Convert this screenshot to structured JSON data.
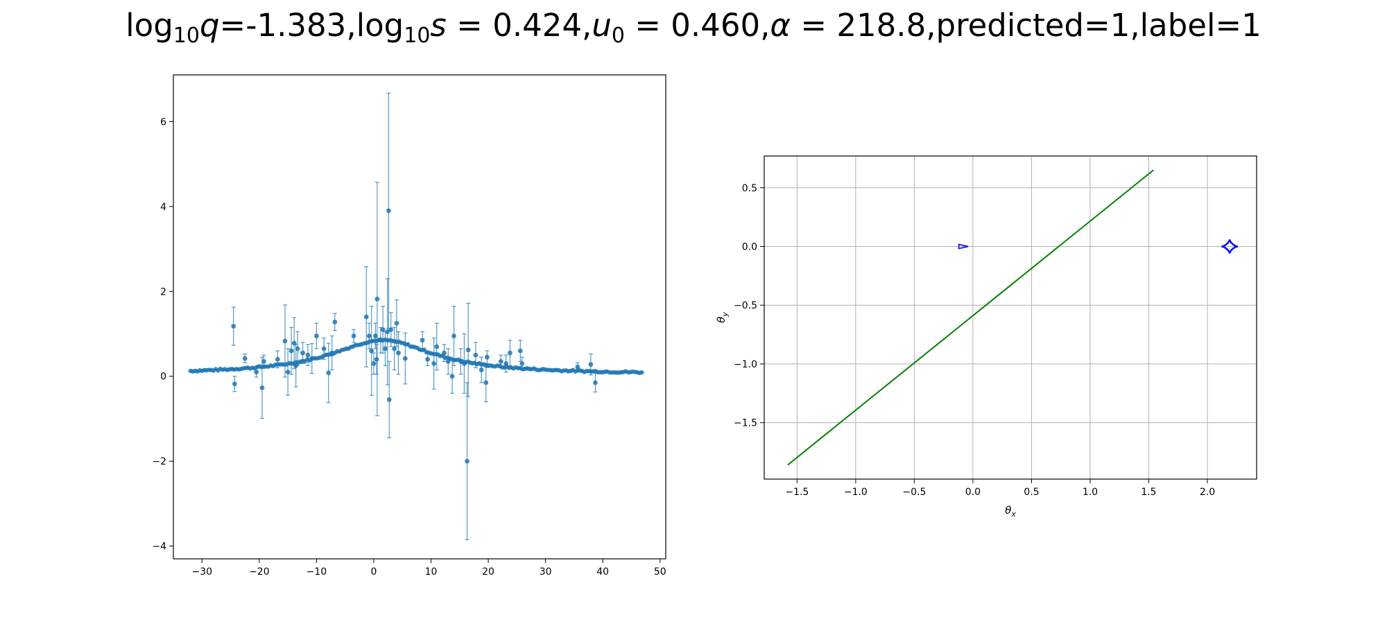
{
  "title": {
    "q_label": "log",
    "q_base": "10",
    "q_sym": "q",
    "q_val": "=-1.383,",
    "s_label": "log",
    "s_base": "10",
    "s_sym": "s",
    "s_val": " = 0.424,",
    "u_sym": "u",
    "u_sub": "0",
    "u_val": " = 0.460,",
    "a_sym": "α",
    "a_val": " = 218.8,",
    "tail": "predicted=1,label=1"
  },
  "colors": {
    "points": "#1f77b4",
    "trajectory": "#008000",
    "caustic": "#0000ff",
    "grid": "#b0b0b0"
  },
  "chart_data": [
    {
      "type": "scatter",
      "subtype": "errorbar",
      "xlim": [
        -35,
        51
      ],
      "ylim": [
        -4.3,
        7.1
      ],
      "xticks": [
        -30,
        -20,
        -10,
        0,
        10,
        20,
        30,
        40,
        50
      ],
      "yticks": [
        -4,
        -2,
        0,
        2,
        4,
        6
      ],
      "xtick_labels": [
        "−30",
        "−20",
        "−10",
        "0",
        "10",
        "20",
        "30",
        "40",
        "50"
      ],
      "ytick_labels": [
        "−4",
        "−2",
        "0",
        "2",
        "4",
        "6"
      ],
      "grid": false,
      "xlabel": "",
      "ylabel": "",
      "baseline_model": {
        "kind": "lorentzian",
        "center": 1.5,
        "amplitude": 0.8,
        "width": 11,
        "from": -32,
        "to": 47,
        "step": 0.4,
        "noise": 0.04
      },
      "outliers": [
        {
          "x": -24.5,
          "y": 1.18,
          "err": 0.45
        },
        {
          "x": -24.3,
          "y": -0.18,
          "err": 0.18
        },
        {
          "x": -22.5,
          "y": 0.42,
          "err": 0.1
        },
        {
          "x": -20.5,
          "y": 0.1,
          "err": 0.12
        },
        {
          "x": -19.5,
          "y": -0.27,
          "err": 0.72
        },
        {
          "x": -19.2,
          "y": 0.35,
          "err": 0.15
        },
        {
          "x": -16.8,
          "y": 0.4,
          "err": 0.2
        },
        {
          "x": -15.5,
          "y": 0.83,
          "err": 0.85
        },
        {
          "x": -15.0,
          "y": 0.1,
          "err": 0.55
        },
        {
          "x": -14.4,
          "y": 0.6,
          "err": 0.55
        },
        {
          "x": -13.9,
          "y": 0.78,
          "err": 0.6
        },
        {
          "x": -13.6,
          "y": 0.25,
          "err": 0.5
        },
        {
          "x": -13.3,
          "y": 0.65,
          "err": 0.4
        },
        {
          "x": -12.4,
          "y": 0.55,
          "err": 0.25
        },
        {
          "x": -11.5,
          "y": 0.5,
          "err": 0.25
        },
        {
          "x": -10.8,
          "y": 0.42,
          "err": 0.35
        },
        {
          "x": -10.0,
          "y": 0.95,
          "err": 0.3
        },
        {
          "x": -8.7,
          "y": 0.65,
          "err": 0.25
        },
        {
          "x": -7.9,
          "y": 0.08,
          "err": 0.7
        },
        {
          "x": -7.3,
          "y": 0.55,
          "err": 0.4
        },
        {
          "x": -6.8,
          "y": 1.28,
          "err": 0.2
        },
        {
          "x": -3.5,
          "y": 0.95,
          "err": 0.15
        },
        {
          "x": -1.3,
          "y": 1.4,
          "err": 1.18
        },
        {
          "x": -0.8,
          "y": 0.95,
          "err": 0.3
        },
        {
          "x": -0.4,
          "y": 0.6,
          "err": 1.05
        },
        {
          "x": 0.0,
          "y": 0.3,
          "err": 0.25
        },
        {
          "x": 0.3,
          "y": 0.95,
          "err": 0.3
        },
        {
          "x": 0.5,
          "y": 0.4,
          "err": 0.35
        },
        {
          "x": 0.6,
          "y": 1.82,
          "err": 2.75
        },
        {
          "x": 1.2,
          "y": 0.85,
          "err": 0.3
        },
        {
          "x": 1.6,
          "y": 1.1,
          "err": 0.55
        },
        {
          "x": 2.0,
          "y": 0.65,
          "err": 0.4
        },
        {
          "x": 2.4,
          "y": 1.05,
          "err": 1.25
        },
        {
          "x": 2.6,
          "y": 3.9,
          "err": 2.77
        },
        {
          "x": 2.7,
          "y": -0.55,
          "err": 0.9
        },
        {
          "x": 3.0,
          "y": 1.1,
          "err": 0.4
        },
        {
          "x": 3.6,
          "y": 0.65,
          "err": 0.5
        },
        {
          "x": 4.0,
          "y": 1.25,
          "err": 0.55
        },
        {
          "x": 4.3,
          "y": 0.55,
          "err": 0.5
        },
        {
          "x": 5.5,
          "y": 0.42,
          "err": 0.6
        },
        {
          "x": 8.5,
          "y": 0.85,
          "err": 0.2
        },
        {
          "x": 9.4,
          "y": 0.4,
          "err": 0.15
        },
        {
          "x": 10.5,
          "y": 0.3,
          "err": 0.6
        },
        {
          "x": 11.0,
          "y": 0.7,
          "err": 0.55
        },
        {
          "x": 12.3,
          "y": 0.55,
          "err": 0.2
        },
        {
          "x": 13.0,
          "y": 0.35,
          "err": 0.3
        },
        {
          "x": 13.7,
          "y": 0.0,
          "err": 0.4
        },
        {
          "x": 14.0,
          "y": 0.95,
          "err": 0.7
        },
        {
          "x": 15.2,
          "y": 0.35,
          "err": 0.3
        },
        {
          "x": 15.8,
          "y": 0.3,
          "err": 0.7
        },
        {
          "x": 16.3,
          "y": -2.0,
          "err": 1.85
        },
        {
          "x": 16.5,
          "y": 0.62,
          "err": 1.1
        },
        {
          "x": 17.8,
          "y": 0.5,
          "err": 0.3
        },
        {
          "x": 18.8,
          "y": 0.15,
          "err": 0.3
        },
        {
          "x": 19.6,
          "y": -0.15,
          "err": 0.45
        },
        {
          "x": 19.8,
          "y": 0.45,
          "err": 0.15
        },
        {
          "x": 22.2,
          "y": 0.35,
          "err": 0.15
        },
        {
          "x": 23.1,
          "y": 0.3,
          "err": 0.2
        },
        {
          "x": 23.8,
          "y": 0.55,
          "err": 0.3
        },
        {
          "x": 25.6,
          "y": 0.6,
          "err": 0.25
        },
        {
          "x": 25.9,
          "y": 0.3,
          "err": 0.15
        },
        {
          "x": 35.6,
          "y": 0.22,
          "err": 0.1
        },
        {
          "x": 37.9,
          "y": 0.28,
          "err": 0.25
        },
        {
          "x": 38.7,
          "y": -0.15,
          "err": 0.22
        }
      ]
    },
    {
      "type": "line",
      "xlim": [
        -1.78,
        2.42
      ],
      "ylim": [
        -1.98,
        0.77
      ],
      "xticks": [
        -1.5,
        -1.0,
        -0.5,
        0.0,
        0.5,
        1.0,
        1.5,
        2.0
      ],
      "yticks": [
        -1.5,
        -1.0,
        -0.5,
        0.0,
        0.5
      ],
      "xtick_labels": [
        "−1.5",
        "−1.0",
        "−0.5",
        "0.0",
        "0.5",
        "1.0",
        "1.5",
        "2.0"
      ],
      "ytick_labels": [
        "−1.5",
        "−1.0",
        "−0.5",
        "0.0",
        "0.5"
      ],
      "grid": true,
      "xlabel": "θ",
      "xlabel_sub": "x",
      "ylabel": "θ",
      "ylabel_sub": "y",
      "trajectory": {
        "x": [
          -1.58,
          1.54
        ],
        "y": [
          -1.86,
          0.65
        ]
      },
      "caustics": [
        {
          "kind": "astroid",
          "center": [
            2.19,
            0.0
          ],
          "rx": 0.07,
          "ry": 0.06
        },
        {
          "kind": "small-triangle",
          "center": [
            -0.08,
            0.0
          ],
          "size": 0.025
        }
      ]
    }
  ]
}
